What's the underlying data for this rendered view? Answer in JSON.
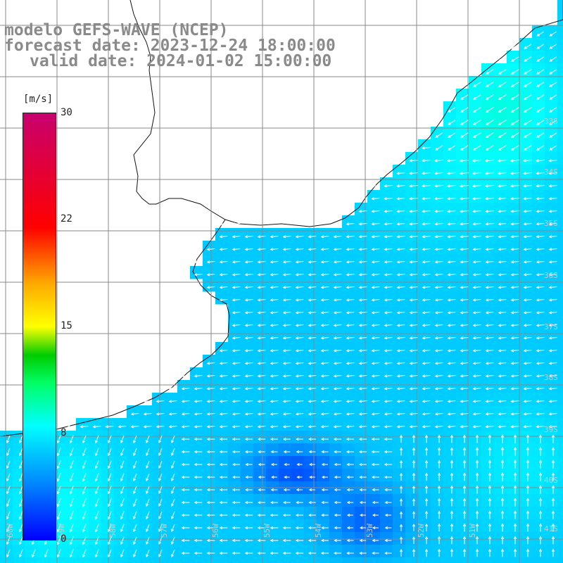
{
  "title": {
    "line1": "modelo GEFS-WAVE (NCEP)",
    "line2": "forecast date: 2023-12-24 18:00:00",
    "line3": "valid date: 2024-01-02 15:00:00"
  },
  "colorbar": {
    "units": "[m/s]",
    "min": 0,
    "max": 30,
    "ticks": [
      "30",
      "22",
      "15",
      "8",
      "0"
    ],
    "tick_values": [
      30,
      22,
      15,
      8,
      0
    ],
    "stops": [
      {
        "v": 0,
        "color": "#0000ff"
      },
      {
        "v": 4,
        "color": "#0088ff"
      },
      {
        "v": 8,
        "color": "#00ffff"
      },
      {
        "v": 11,
        "color": "#00ff66"
      },
      {
        "v": 13,
        "color": "#00cc00"
      },
      {
        "v": 15,
        "color": "#ffff00"
      },
      {
        "v": 18,
        "color": "#ffaa00"
      },
      {
        "v": 22,
        "color": "#ff0000"
      },
      {
        "v": 30,
        "color": "#c8006e"
      }
    ]
  },
  "map": {
    "grid_color": "#888888",
    "land_color": "#ffffff",
    "arrow_color": "#ffffff",
    "lat_labels": [
      "33S",
      "34S",
      "35S",
      "36S",
      "37S",
      "38S",
      "39S",
      "40S",
      "41S"
    ],
    "lon_labels": [
      "60W",
      "59W",
      "58W",
      "57W",
      "56W",
      "55W",
      "54W",
      "53W",
      "52W",
      "51W"
    ]
  }
}
